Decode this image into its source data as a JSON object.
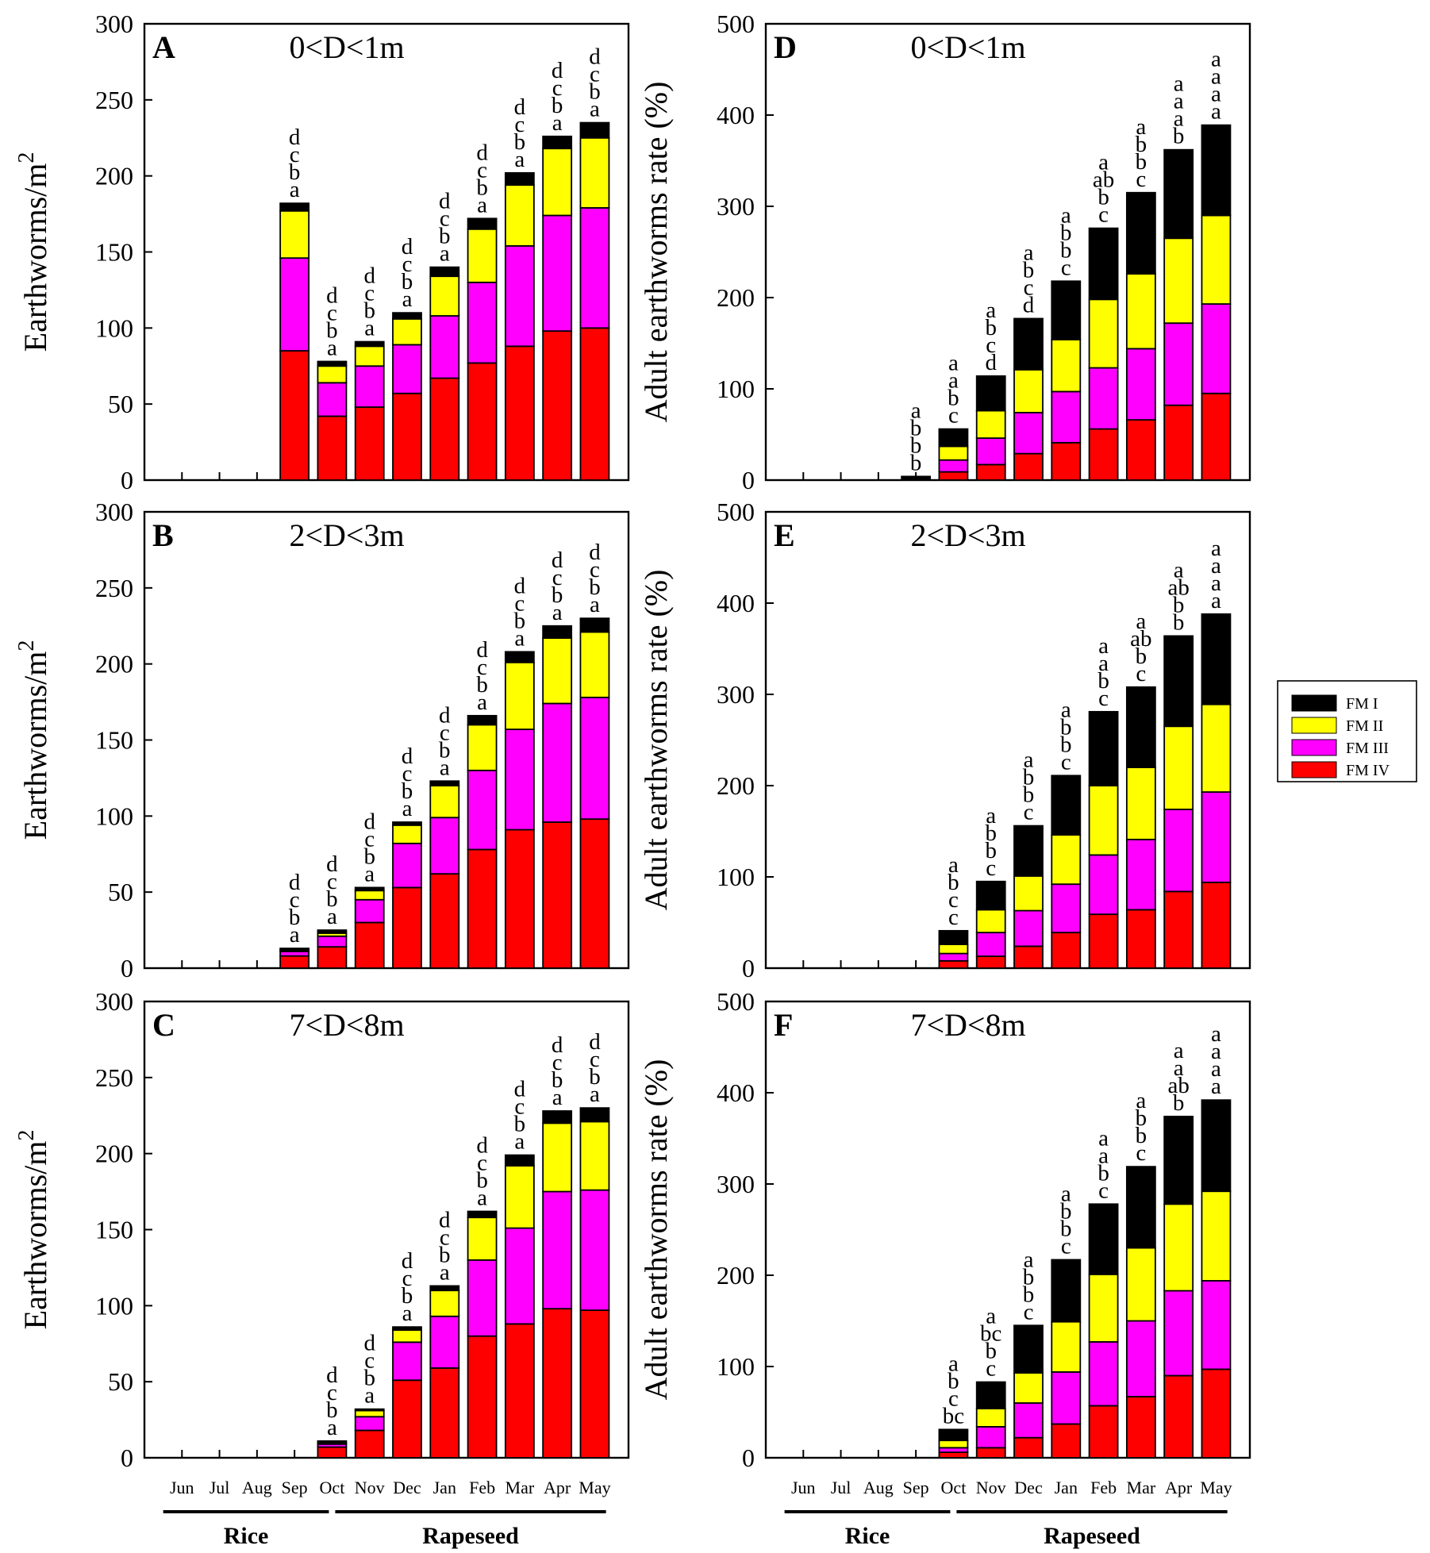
{
  "colors": {
    "FM I": "#000000",
    "FM II": "#ffff00",
    "FM III": "#ff00ff",
    "FM IV": "#ff0000"
  },
  "legend": [
    "FM I",
    "FM II",
    "FM III",
    "FM IV"
  ],
  "months": [
    "Jun",
    "Jul",
    "Aug",
    "Sep",
    "Oct",
    "Nov",
    "Dec",
    "Jan",
    "Feb",
    "Mar",
    "Apr",
    "May"
  ],
  "crops": [
    {
      "label": "Rice",
      "from": "Jun",
      "to": "Oct"
    },
    {
      "label": "Rapeseed",
      "from": "Oct",
      "to": "May"
    }
  ],
  "chart_data": [
    {
      "type": "bar",
      "stacked": true,
      "panel": "A",
      "title": "0<D<1m",
      "ylabel": "Earthworms/m²",
      "ylim": [
        0,
        300
      ],
      "yticks": [
        0,
        50,
        100,
        150,
        200,
        250,
        300
      ],
      "categories": [
        "Jun",
        "Jul",
        "Aug",
        "Sep",
        "Oct",
        "Nov",
        "Dec",
        "Jan",
        "Feb",
        "Mar",
        "Apr",
        "May"
      ],
      "series": [
        {
          "name": "FM IV",
          "values": [
            0,
            0,
            0,
            85,
            42,
            48,
            57,
            67,
            77,
            88,
            98,
            100
          ]
        },
        {
          "name": "FM III",
          "values": [
            0,
            0,
            0,
            61,
            22,
            27,
            32,
            41,
            53,
            66,
            76,
            79
          ]
        },
        {
          "name": "FM II",
          "values": [
            0,
            0,
            0,
            31,
            11,
            13,
            17,
            26,
            35,
            40,
            44,
            46
          ]
        },
        {
          "name": "FM I",
          "values": [
            0,
            0,
            0,
            5,
            3,
            3,
            4,
            6,
            7,
            8,
            8,
            10
          ]
        }
      ],
      "letters": [
        [],
        [],
        [],
        [
          "d",
          "c",
          "b",
          "a"
        ],
        [
          "d",
          "c",
          "b",
          "a"
        ],
        [
          "d",
          "c",
          "b",
          "a"
        ],
        [
          "d",
          "c",
          "b",
          "a"
        ],
        [
          "d",
          "c",
          "b",
          "a"
        ],
        [
          "d",
          "c",
          "b",
          "a"
        ],
        [
          "d",
          "c",
          "b",
          "a"
        ],
        [
          "d",
          "c",
          "b",
          "a"
        ],
        [
          "d",
          "c",
          "b",
          "a"
        ]
      ]
    },
    {
      "type": "bar",
      "stacked": true,
      "panel": "B",
      "title": "2<D<3m",
      "ylabel": "Earthworms/m²",
      "ylim": [
        0,
        300
      ],
      "yticks": [
        0,
        50,
        100,
        150,
        200,
        250,
        300
      ],
      "categories": [
        "Jun",
        "Jul",
        "Aug",
        "Sep",
        "Oct",
        "Nov",
        "Dec",
        "Jan",
        "Feb",
        "Mar",
        "Apr",
        "May"
      ],
      "series": [
        {
          "name": "FM IV",
          "values": [
            0,
            0,
            0,
            8,
            14,
            30,
            53,
            62,
            78,
            91,
            96,
            98
          ]
        },
        {
          "name": "FM III",
          "values": [
            0,
            0,
            0,
            3,
            7,
            15,
            29,
            37,
            52,
            66,
            78,
            80
          ]
        },
        {
          "name": "FM II",
          "values": [
            0,
            0,
            0,
            1,
            2,
            6,
            12,
            21,
            30,
            44,
            43,
            43
          ]
        },
        {
          "name": "FM I",
          "values": [
            0,
            0,
            0,
            1,
            2,
            2,
            2,
            3,
            6,
            7,
            8,
            9
          ]
        }
      ],
      "letters": [
        [],
        [],
        [],
        [
          "d",
          "c",
          "b",
          "a"
        ],
        [
          "d",
          "c",
          "b",
          "a"
        ],
        [
          "d",
          "c",
          "b",
          "a"
        ],
        [
          "d",
          "c",
          "b",
          "a"
        ],
        [
          "d",
          "c",
          "b",
          "a"
        ],
        [
          "d",
          "c",
          "b",
          "a"
        ],
        [
          "d",
          "c",
          "b",
          "a"
        ],
        [
          "d",
          "c",
          "b",
          "a"
        ],
        [
          "d",
          "c",
          "b",
          "a"
        ]
      ]
    },
    {
      "type": "bar",
      "stacked": true,
      "panel": "C",
      "title": "7<D<8m",
      "ylabel": "Earthworms/m²",
      "ylim": [
        0,
        300
      ],
      "yticks": [
        0,
        50,
        100,
        150,
        200,
        250,
        300
      ],
      "categories": [
        "Jun",
        "Jul",
        "Aug",
        "Sep",
        "Oct",
        "Nov",
        "Dec",
        "Jan",
        "Feb",
        "Mar",
        "Apr",
        "May"
      ],
      "series": [
        {
          "name": "FM IV",
          "values": [
            0,
            0,
            0,
            0,
            7,
            18,
            51,
            59,
            80,
            88,
            98,
            97
          ]
        },
        {
          "name": "FM III",
          "values": [
            0,
            0,
            0,
            0,
            2,
            9,
            25,
            34,
            50,
            63,
            77,
            79
          ]
        },
        {
          "name": "FM II",
          "values": [
            0,
            0,
            0,
            0,
            1,
            4,
            8,
            17,
            28,
            41,
            45,
            45
          ]
        },
        {
          "name": "FM I",
          "values": [
            0,
            0,
            0,
            0,
            1,
            1,
            2,
            3,
            4,
            7,
            8,
            9
          ]
        }
      ],
      "letters": [
        [],
        [],
        [],
        [],
        [
          "d",
          "c",
          "b",
          "a"
        ],
        [
          "d",
          "c",
          "b",
          "a"
        ],
        [
          "d",
          "c",
          "b",
          "a"
        ],
        [
          "d",
          "c",
          "b",
          "a"
        ],
        [
          "d",
          "c",
          "b",
          "a"
        ],
        [
          "d",
          "c",
          "b",
          "a"
        ],
        [
          "d",
          "c",
          "b",
          "a"
        ],
        [
          "d",
          "c",
          "b",
          "a"
        ]
      ]
    },
    {
      "type": "bar",
      "stacked": true,
      "panel": "D",
      "title": "0<D<1m",
      "ylabel": "Adult earthworms rate (%)",
      "ylim": [
        0,
        500
      ],
      "yticks": [
        0,
        100,
        200,
        300,
        400,
        500
      ],
      "categories": [
        "Jun",
        "Jul",
        "Aug",
        "Sep",
        "Oct",
        "Nov",
        "Dec",
        "Jan",
        "Feb",
        "Mar",
        "Apr",
        "May"
      ],
      "series": [
        {
          "name": "FM IV",
          "values": [
            0,
            0,
            0,
            0,
            9,
            17,
            29,
            41,
            56,
            66,
            82,
            95
          ]
        },
        {
          "name": "FM III",
          "values": [
            0,
            0,
            0,
            0,
            13,
            29,
            45,
            56,
            67,
            78,
            90,
            98
          ]
        },
        {
          "name": "FM II",
          "values": [
            0,
            0,
            0,
            0,
            15,
            30,
            47,
            57,
            75,
            82,
            93,
            97
          ]
        },
        {
          "name": "FM I",
          "values": [
            0,
            0,
            0,
            4,
            19,
            38,
            56,
            64,
            78,
            89,
            97,
            99
          ]
        }
      ],
      "letters": [
        [],
        [],
        [],
        [
          "a",
          "b",
          "b",
          "b"
        ],
        [
          "a",
          "a",
          "b",
          "c"
        ],
        [
          "a",
          "b",
          "c",
          "d"
        ],
        [
          "a",
          "b",
          "c",
          "d"
        ],
        [
          "a",
          "b",
          "b",
          "c"
        ],
        [
          "a",
          "ab",
          "b",
          "c"
        ],
        [
          "a",
          "b",
          "b",
          "c"
        ],
        [
          "a",
          "a",
          "a",
          "b"
        ],
        [
          "a",
          "a",
          "a",
          "a"
        ]
      ]
    },
    {
      "type": "bar",
      "stacked": true,
      "panel": "E",
      "title": "2<D<3m",
      "ylabel": "Adult earthworms rate (%)",
      "ylim": [
        0,
        500
      ],
      "yticks": [
        0,
        100,
        200,
        300,
        400,
        500
      ],
      "categories": [
        "Jun",
        "Jul",
        "Aug",
        "Sep",
        "Oct",
        "Nov",
        "Dec",
        "Jan",
        "Feb",
        "Mar",
        "Apr",
        "May"
      ],
      "series": [
        {
          "name": "FM IV",
          "values": [
            0,
            0,
            0,
            0,
            8,
            13,
            24,
            39,
            59,
            64,
            84,
            94
          ]
        },
        {
          "name": "FM III",
          "values": [
            0,
            0,
            0,
            0,
            8,
            26,
            39,
            53,
            65,
            77,
            90,
            99
          ]
        },
        {
          "name": "FM II",
          "values": [
            0,
            0,
            0,
            0,
            10,
            25,
            38,
            54,
            76,
            79,
            91,
            96
          ]
        },
        {
          "name": "FM I",
          "values": [
            0,
            0,
            0,
            0,
            15,
            31,
            55,
            65,
            81,
            88,
            99,
            99
          ]
        }
      ],
      "letters": [
        [],
        [],
        [],
        [],
        [
          "a",
          "b",
          "c",
          "c"
        ],
        [
          "a",
          "b",
          "b",
          "c"
        ],
        [
          "a",
          "b",
          "b",
          "c"
        ],
        [
          "a",
          "b",
          "b",
          "c"
        ],
        [
          "a",
          "a",
          "b",
          "c"
        ],
        [
          "a",
          "ab",
          "b",
          "c"
        ],
        [
          "a",
          "ab",
          "b",
          "b"
        ],
        [
          "a",
          "a",
          "a",
          "a"
        ]
      ]
    },
    {
      "type": "bar",
      "stacked": true,
      "panel": "F",
      "title": "7<D<8m",
      "ylabel": "Adult earthworms rate (%)",
      "ylim": [
        0,
        500
      ],
      "yticks": [
        0,
        100,
        200,
        300,
        400,
        500
      ],
      "categories": [
        "Jun",
        "Jul",
        "Aug",
        "Sep",
        "Oct",
        "Nov",
        "Dec",
        "Jan",
        "Feb",
        "Mar",
        "Apr",
        "May"
      ],
      "series": [
        {
          "name": "FM IV",
          "values": [
            0,
            0,
            0,
            0,
            6,
            11,
            22,
            37,
            57,
            67,
            90,
            97
          ]
        },
        {
          "name": "FM III",
          "values": [
            0,
            0,
            0,
            0,
            5,
            23,
            38,
            57,
            70,
            83,
            93,
            97
          ]
        },
        {
          "name": "FM II",
          "values": [
            0,
            0,
            0,
            0,
            8,
            20,
            33,
            55,
            74,
            80,
            95,
            98
          ]
        },
        {
          "name": "FM I",
          "values": [
            0,
            0,
            0,
            0,
            12,
            29,
            52,
            68,
            77,
            89,
            96,
            100
          ]
        }
      ],
      "letters": [
        [],
        [],
        [],
        [],
        [
          "a",
          "b",
          "c",
          "bc"
        ],
        [
          "a",
          "bc",
          "b",
          "c"
        ],
        [
          "a",
          "b",
          "b",
          "c"
        ],
        [
          "a",
          "b",
          "b",
          "c"
        ],
        [
          "a",
          "a",
          "b",
          "c"
        ],
        [
          "a",
          "b",
          "b",
          "c"
        ],
        [
          "a",
          "a",
          "ab",
          "b"
        ],
        [
          "a",
          "a",
          "a",
          "a"
        ]
      ]
    }
  ]
}
